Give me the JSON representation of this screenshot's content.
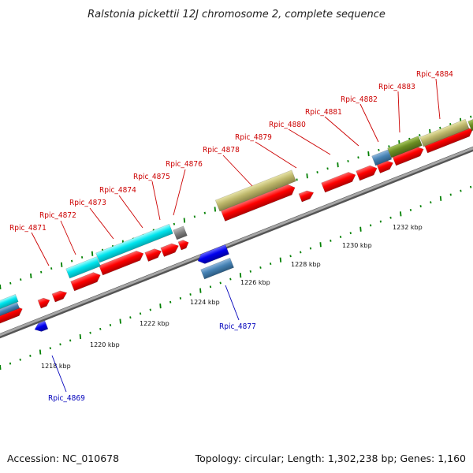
{
  "title": "Ralstonia pickettii 12J chromosome 2, complete sequence",
  "accession": "Accession: NC_010678",
  "summary": "Topology: circular; Length: 1,302,238 bp; Genes: 1,160",
  "colors": {
    "forward_label": "#cc0000",
    "reverse_label": "#0000bb",
    "cds": "#ff0000",
    "rna": "#0000ee",
    "tick": "#008000",
    "backbone": "#808080",
    "cyan": "#00e5ee",
    "khaki": "#bdb76b",
    "steelblue": "#4682b4",
    "olive": "#6b8e23"
  },
  "scale_ticks": [
    "1218 kbp",
    "1220 kbp",
    "1222 kbp",
    "1224 kbp",
    "1226 kbp",
    "1228 kbp",
    "1230 kbp",
    "1232 kbp"
  ],
  "forward_genes": [
    "Rpic_4871",
    "Rpic_4872",
    "Rpic_4873",
    "Rpic_4874",
    "Rpic_4875",
    "Rpic_4876",
    "Rpic_4878",
    "Rpic_4879",
    "Rpic_4880",
    "Rpic_4881",
    "Rpic_4882",
    "Rpic_4883",
    "Rpic_4884"
  ],
  "reverse_genes": [
    "Rpic_4869",
    "Rpic_4877"
  ]
}
